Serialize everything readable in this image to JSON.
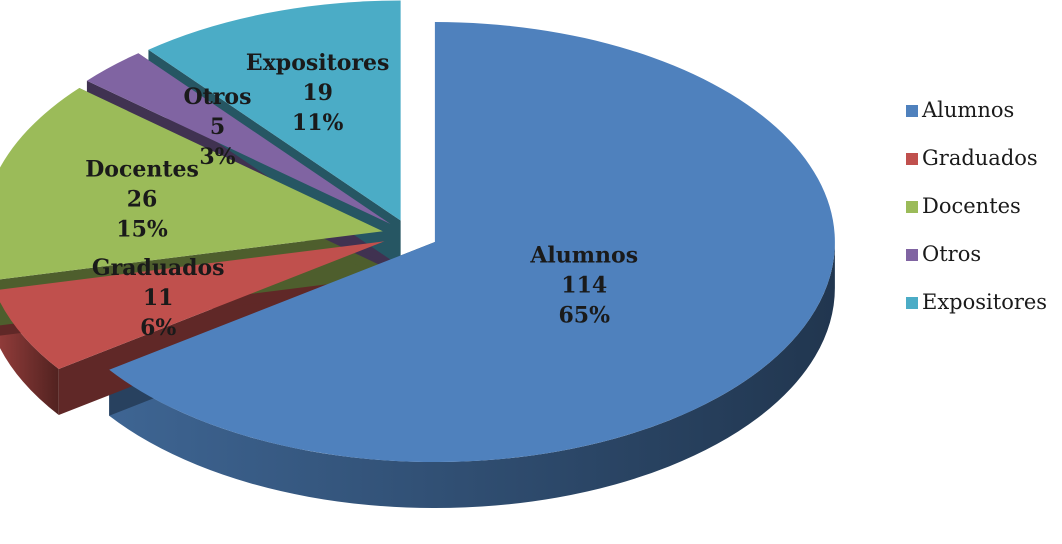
{
  "chart_data": {
    "type": "pie",
    "title": "",
    "style": "3d-exploded",
    "legend_position": "right",
    "slices": [
      {
        "name": "Alumnos",
        "value": 114,
        "percent": "65%",
        "color": "#4F81BD"
      },
      {
        "name": "Graduados",
        "value": 11,
        "percent": "6%",
        "color": "#C0504D"
      },
      {
        "name": "Docentes",
        "value": 26,
        "percent": "15%",
        "color": "#9BBB59"
      },
      {
        "name": "Otros",
        "value": 5,
        "percent": "3%",
        "color": "#8064A2"
      },
      {
        "name": "Expositores",
        "value": 19,
        "percent": "11%",
        "color": "#4BACC6"
      }
    ]
  }
}
